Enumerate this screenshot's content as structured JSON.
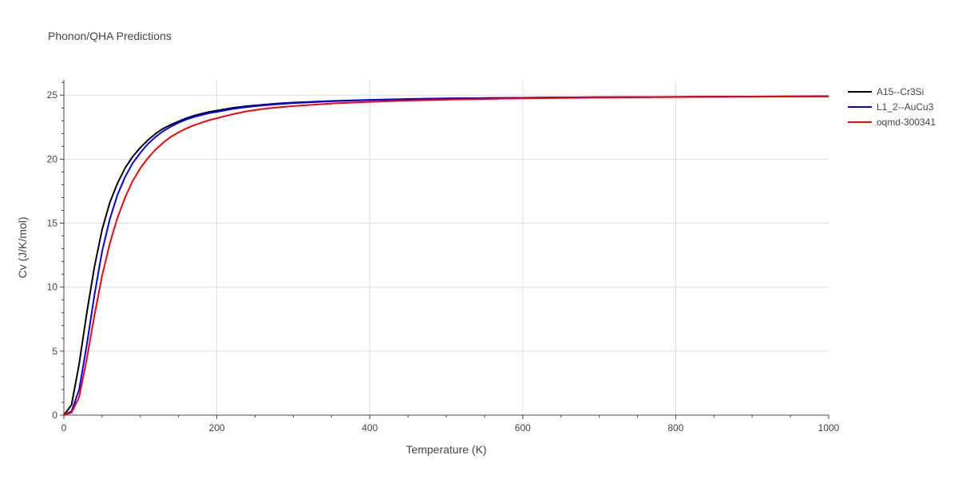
{
  "chart_data": {
    "type": "line",
    "title": "Phonon/QHA Predictions",
    "xlabel": "Temperature (K)",
    "ylabel": "Cv (J/K/mol)",
    "xlim": [
      0,
      1000
    ],
    "ylim": [
      0,
      26.2
    ],
    "xticks": [
      0,
      200,
      400,
      600,
      800,
      1000
    ],
    "yticks": [
      0,
      5,
      10,
      15,
      20,
      25
    ],
    "grid": true,
    "legend_position": "top-right",
    "series": [
      {
        "name": "A15--Cr3Si",
        "color": "#000000",
        "x": [
          0,
          10,
          20,
          30,
          40,
          50,
          60,
          70,
          80,
          90,
          100,
          110,
          120,
          130,
          140,
          150,
          160,
          170,
          180,
          190,
          200,
          220,
          240,
          260,
          280,
          300,
          350,
          400,
          450,
          500,
          600,
          700,
          800,
          900,
          1000
        ],
        "y": [
          0,
          0.8,
          4.0,
          8.0,
          11.6,
          14.5,
          16.6,
          18.1,
          19.3,
          20.2,
          20.9,
          21.5,
          22.0,
          22.4,
          22.7,
          22.95,
          23.2,
          23.4,
          23.55,
          23.7,
          23.8,
          24.0,
          24.15,
          24.25,
          24.35,
          24.42,
          24.55,
          24.63,
          24.7,
          24.75,
          24.8,
          24.84,
          24.87,
          24.89,
          24.91
        ]
      },
      {
        "name": "L1_2--AuCu3",
        "color": "#0000ff",
        "x": [
          0,
          10,
          20,
          30,
          40,
          50,
          60,
          70,
          80,
          90,
          100,
          110,
          120,
          130,
          140,
          150,
          160,
          170,
          180,
          190,
          200,
          220,
          240,
          260,
          280,
          300,
          350,
          400,
          450,
          500,
          600,
          700,
          800,
          900,
          1000
        ],
        "y": [
          0,
          0.3,
          2.0,
          5.5,
          9.4,
          12.8,
          15.3,
          17.2,
          18.6,
          19.7,
          20.5,
          21.2,
          21.75,
          22.2,
          22.55,
          22.85,
          23.1,
          23.3,
          23.45,
          23.6,
          23.7,
          23.92,
          24.08,
          24.2,
          24.3,
          24.38,
          24.52,
          24.62,
          24.68,
          24.74,
          24.8,
          24.84,
          24.87,
          24.89,
          24.91
        ]
      },
      {
        "name": "oqmd-300341",
        "color": "#ff0000",
        "x": [
          0,
          10,
          20,
          30,
          40,
          50,
          60,
          70,
          80,
          90,
          100,
          110,
          120,
          130,
          140,
          150,
          160,
          170,
          180,
          190,
          200,
          220,
          240,
          260,
          280,
          300,
          350,
          400,
          450,
          500,
          600,
          700,
          800,
          900,
          1000
        ],
        "y": [
          0,
          0.2,
          1.4,
          4.4,
          7.8,
          10.9,
          13.4,
          15.4,
          17.0,
          18.3,
          19.3,
          20.1,
          20.75,
          21.3,
          21.75,
          22.1,
          22.4,
          22.65,
          22.85,
          23.05,
          23.2,
          23.5,
          23.75,
          23.92,
          24.05,
          24.15,
          24.35,
          24.48,
          24.58,
          24.65,
          24.75,
          24.81,
          24.85,
          24.88,
          24.9
        ]
      }
    ]
  }
}
